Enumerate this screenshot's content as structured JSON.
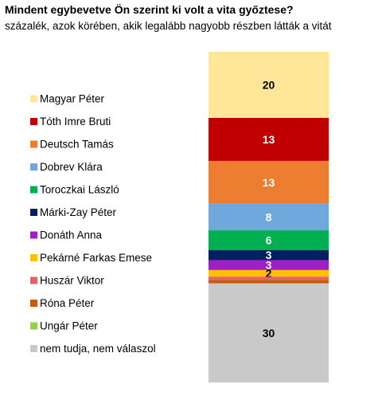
{
  "title": "Mindent egybevetve Ön szerint ki volt a vita győztese?",
  "subtitle": "százalék, azok körében, akik legalább nagyobb részben látták a vitát",
  "chart_data": {
    "type": "bar",
    "stacked": true,
    "orientation": "vertical",
    "ylim": [
      0,
      100
    ],
    "grid": false,
    "legend_position": "left",
    "series": [
      {
        "name": "Magyar Péter",
        "value": 20,
        "label": "20",
        "color": "#FFE699",
        "label_color": "#000000"
      },
      {
        "name": "Tóth Imre Bruti",
        "value": 13,
        "label": "13",
        "color": "#C00000",
        "label_color": "#FFFFFF"
      },
      {
        "name": "Deutsch Tamás",
        "value": 13,
        "label": "13",
        "color": "#ED7D31",
        "label_color": "#FFFFFF"
      },
      {
        "name": "Dobrev Klára",
        "value": 8,
        "label": "8",
        "color": "#6FA8DC",
        "label_color": "#FFFFFF"
      },
      {
        "name": "Toroczkai László",
        "value": 6,
        "label": "6",
        "color": "#00B050",
        "label_color": "#FFFFFF"
      },
      {
        "name": "Márki-Zay Péter",
        "value": 3,
        "label": "3",
        "color": "#002060",
        "label_color": "#FFFFFF"
      },
      {
        "name": "Donáth Anna",
        "value": 3,
        "label": "3",
        "color": "#9E1FC8",
        "label_color": "#FFFFFF"
      },
      {
        "name": "Pekárné Farkas Emese",
        "value": 2,
        "label": "2",
        "color": "#FFC000",
        "label_color": "#000000"
      },
      {
        "name": "Huszár Viktor",
        "value": 1,
        "label": "",
        "color": "#E06666",
        "label_color": "#000000"
      },
      {
        "name": "Róna Péter",
        "value": 1,
        "label": "",
        "color": "#C55A11",
        "label_color": "#000000"
      },
      {
        "name": "Ungár Péter",
        "value": 0,
        "label": "",
        "color": "#92D050",
        "label_color": "#000000"
      },
      {
        "name": "nem tudja, nem válaszol",
        "value": 30,
        "label": "30",
        "color": "#C9C9C9",
        "label_color": "#000000"
      }
    ]
  }
}
